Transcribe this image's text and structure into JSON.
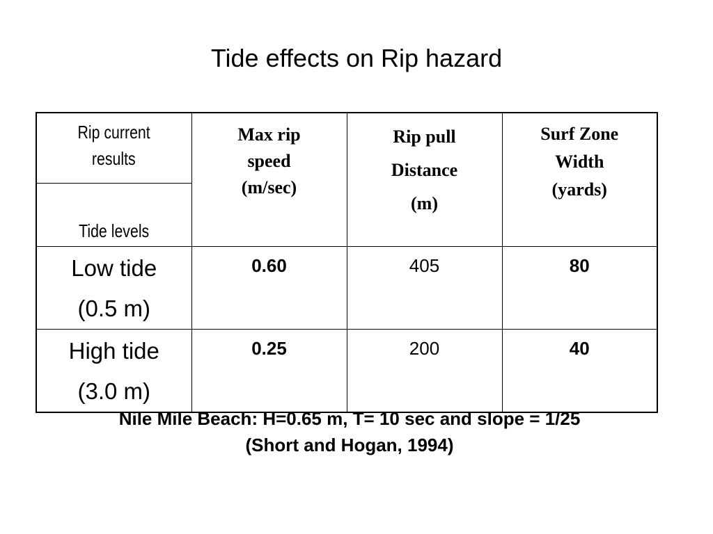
{
  "title": "Tide effects on Rip hazard",
  "table": {
    "corner_top": [
      "Rip current",
      "results"
    ],
    "corner_bottom": "Tide levels",
    "headers": [
      [
        "Max rip",
        "speed",
        "(m/sec)"
      ],
      [
        "Rip pull",
        "Distance",
        "(m)"
      ],
      [
        "Surf Zone",
        "Width",
        "(yards)"
      ]
    ],
    "rows": [
      {
        "label": [
          "Low tide",
          "(0.5 m)"
        ],
        "max_rip_speed": "0.60",
        "rip_pull_distance": "405",
        "surf_zone_width": "80"
      },
      {
        "label": [
          "High tide",
          "(3.0 m)"
        ],
        "max_rip_speed": "0.25",
        "rip_pull_distance": "200",
        "surf_zone_width": "40"
      }
    ]
  },
  "caption": [
    "Nile Mile Beach:  H=0.65 m, T= 10 sec and slope = 1/25",
    "(Short and Hogan, 1994)"
  ]
}
